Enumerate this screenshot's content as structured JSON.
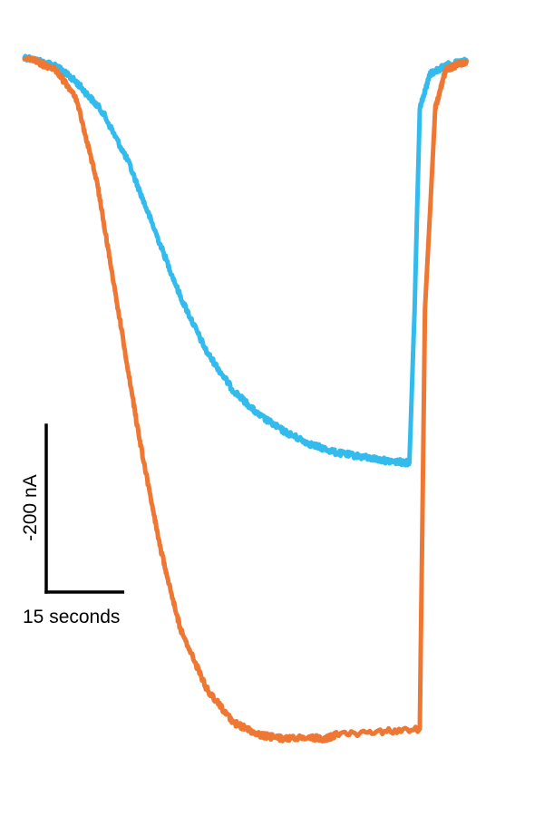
{
  "chart_data": {
    "type": "line",
    "title": "",
    "xlabel": "",
    "ylabel": "",
    "grid": false,
    "legend": "none",
    "x_unit": "s",
    "y_unit": "nA",
    "xlim": [
      0,
      95
    ],
    "ylim": [
      -880,
      30
    ],
    "series": [
      {
        "color": "#33bbee",
        "points": [
          [
            0,
            0
          ],
          [
            6,
            -10
          ],
          [
            10,
            -30
          ],
          [
            15,
            -65
          ],
          [
            20,
            -125
          ],
          [
            25,
            -205
          ],
          [
            30,
            -285
          ],
          [
            35,
            -350
          ],
          [
            40,
            -395
          ],
          [
            45,
            -425
          ],
          [
            50,
            -445
          ],
          [
            55,
            -460
          ],
          [
            60,
            -470
          ],
          [
            65,
            -475
          ],
          [
            70,
            -480
          ],
          [
            74,
            -482
          ],
          [
            75,
            -300
          ],
          [
            76,
            -60
          ],
          [
            78,
            -20
          ],
          [
            81,
            -10
          ],
          [
            85,
            -5
          ]
        ]
      },
      {
        "color": "#ee7733",
        "points": [
          [
            0,
            0
          ],
          [
            6,
            -15
          ],
          [
            10,
            -50
          ],
          [
            14,
            -150
          ],
          [
            18,
            -300
          ],
          [
            22,
            -450
          ],
          [
            26,
            -580
          ],
          [
            30,
            -680
          ],
          [
            35,
            -750
          ],
          [
            40,
            -790
          ],
          [
            45,
            -805
          ],
          [
            50,
            -810
          ],
          [
            55,
            -808
          ],
          [
            58,
            -810
          ],
          [
            60,
            -805
          ],
          [
            76,
            -798
          ],
          [
            77,
            -300
          ],
          [
            79,
            -60
          ],
          [
            81,
            -15
          ],
          [
            85,
            -5
          ]
        ]
      }
    ],
    "scale_bar": {
      "x_label": "15 seconds",
      "x_value": 15,
      "y_label": "-200 nA",
      "y_value": -200
    }
  }
}
